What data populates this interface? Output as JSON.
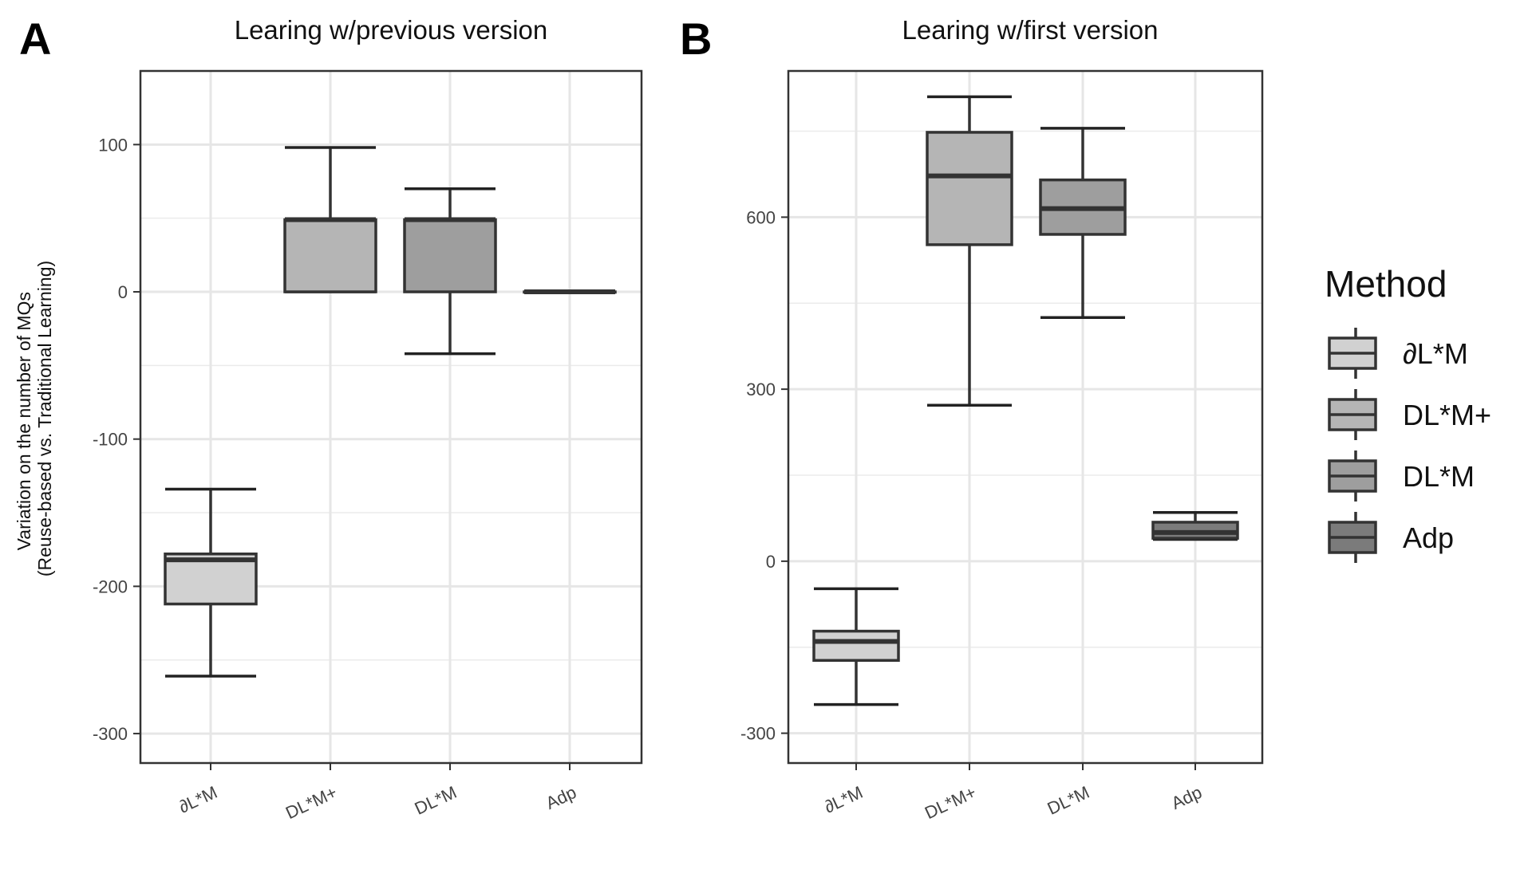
{
  "chart_data": [
    {
      "panel": "A",
      "type": "box",
      "title": "Learing w/previous version",
      "ylabel_lines": [
        "Variation on the number of MQs",
        "(Reuse-based vs. Traditional Learning)"
      ],
      "ylim": [
        -320,
        150
      ],
      "yticks": [
        100,
        0,
        -100,
        -200,
        -300
      ],
      "ytick_labels": [
        "100",
        "0",
        "-100",
        "-200",
        "-300"
      ],
      "grid": true,
      "categories": [
        "∂L*M",
        "DL*M+",
        "DL*M",
        "Adp"
      ],
      "boxes": [
        {
          "name": "∂L*M",
          "whisker_low": -261,
          "q1": -212,
          "median": -182,
          "q3": -178,
          "whisker_high": -134,
          "color": "#d1d1d1"
        },
        {
          "name": "DL*M+",
          "whisker_low": 0,
          "q1": 0,
          "median": 49,
          "q3": 49,
          "whisker_high": 98,
          "color": "#b5b5b5"
        },
        {
          "name": "DL*M",
          "whisker_low": -42,
          "q1": 0,
          "median": 49,
          "q3": 49,
          "whisker_high": 70,
          "color": "#9e9e9e"
        },
        {
          "name": "Adp",
          "whisker_low": 0,
          "q1": 0,
          "median": 0,
          "q3": 0,
          "whisker_high": 0,
          "color": "#7b7b7b"
        }
      ]
    },
    {
      "panel": "B",
      "type": "box",
      "title": "Learing w/first version",
      "ylim": [
        -352,
        855
      ],
      "yticks": [
        600,
        300,
        0,
        -300
      ],
      "ytick_labels": [
        "600",
        "300",
        "0",
        "-300"
      ],
      "grid": true,
      "categories": [
        "∂L*M",
        "DL*M+",
        "DL*M",
        "Adp"
      ],
      "boxes": [
        {
          "name": "∂L*M",
          "whisker_low": -250,
          "q1": -173,
          "median": -140,
          "q3": -122,
          "whisker_high": -48,
          "color": "#d1d1d1"
        },
        {
          "name": "DL*M+",
          "whisker_low": 272,
          "q1": 552,
          "median": 672,
          "q3": 748,
          "whisker_high": 810,
          "color": "#b5b5b5"
        },
        {
          "name": "DL*M",
          "whisker_low": 425,
          "q1": 570,
          "median": 615,
          "q3": 665,
          "whisker_high": 755,
          "color": "#9e9e9e"
        },
        {
          "name": "Adp",
          "whisker_low": 38,
          "q1": 40,
          "median": 50,
          "q3": 68,
          "whisker_high": 85,
          "color": "#7b7b7b"
        }
      ]
    }
  ],
  "legend": {
    "title": "Method",
    "placement": "right",
    "items": [
      {
        "label": "∂L*M",
        "color": "#d1d1d1"
      },
      {
        "label": "DL*M+",
        "color": "#b5b5b5"
      },
      {
        "label": "DL*M",
        "color": "#9e9e9e"
      },
      {
        "label": "Adp",
        "color": "#7b7b7b"
      }
    ]
  }
}
